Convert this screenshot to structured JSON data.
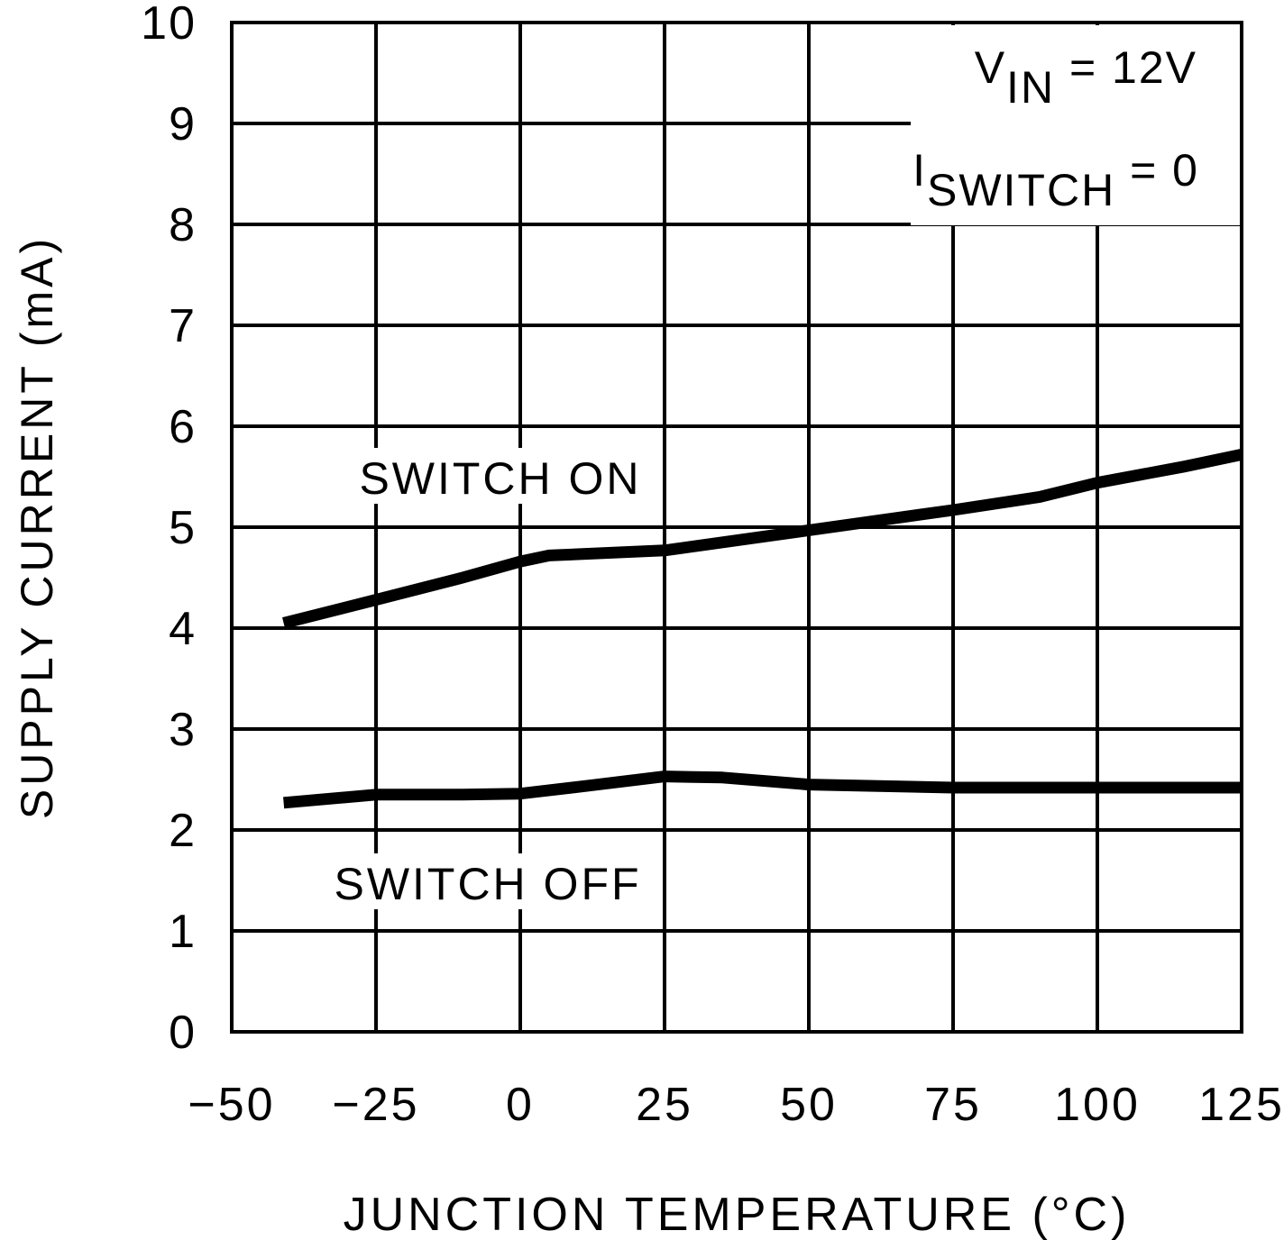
{
  "chart_data": {
    "type": "line",
    "title": "",
    "xlabel": "JUNCTION TEMPERATURE (°C)",
    "ylabel": "SUPPLY CURRENT (mA)",
    "xlim": [
      -50,
      125
    ],
    "ylim": [
      0,
      10
    ],
    "xticks": [
      -50,
      -25,
      0,
      25,
      50,
      75,
      100,
      125
    ],
    "xtick_labels": [
      "−50",
      "−25",
      "0",
      "25",
      "50",
      "75",
      "100",
      "125"
    ],
    "yticks": [
      0,
      1,
      2,
      3,
      4,
      5,
      6,
      7,
      8,
      9,
      10
    ],
    "ytick_labels": [
      "0",
      "1",
      "2",
      "3",
      "4",
      "5",
      "6",
      "7",
      "8",
      "9",
      "10"
    ],
    "grid": true,
    "annotations": {
      "vin": {
        "main": "V",
        "sub": "IN",
        "rest": " = 12V"
      },
      "iswitch": {
        "main": "I",
        "sub": "SWITCH",
        "rest": " = 0"
      }
    },
    "series": [
      {
        "name": "SWITCH ON",
        "x": [
          -41,
          -25,
          -10,
          0,
          5,
          25,
          50,
          75,
          90,
          100,
          115,
          125
        ],
        "y": [
          4.05,
          4.28,
          4.5,
          4.66,
          4.72,
          4.77,
          4.97,
          5.17,
          5.3,
          5.44,
          5.6,
          5.72
        ]
      },
      {
        "name": "SWITCH OFF",
        "x": [
          -41,
          -25,
          -10,
          0,
          12,
          25,
          35,
          50,
          75,
          100,
          125
        ],
        "y": [
          2.27,
          2.35,
          2.35,
          2.36,
          2.44,
          2.53,
          2.52,
          2.45,
          2.42,
          2.42,
          2.42
        ]
      }
    ],
    "colors": {
      "line": "#000000",
      "grid": "#000000"
    }
  }
}
